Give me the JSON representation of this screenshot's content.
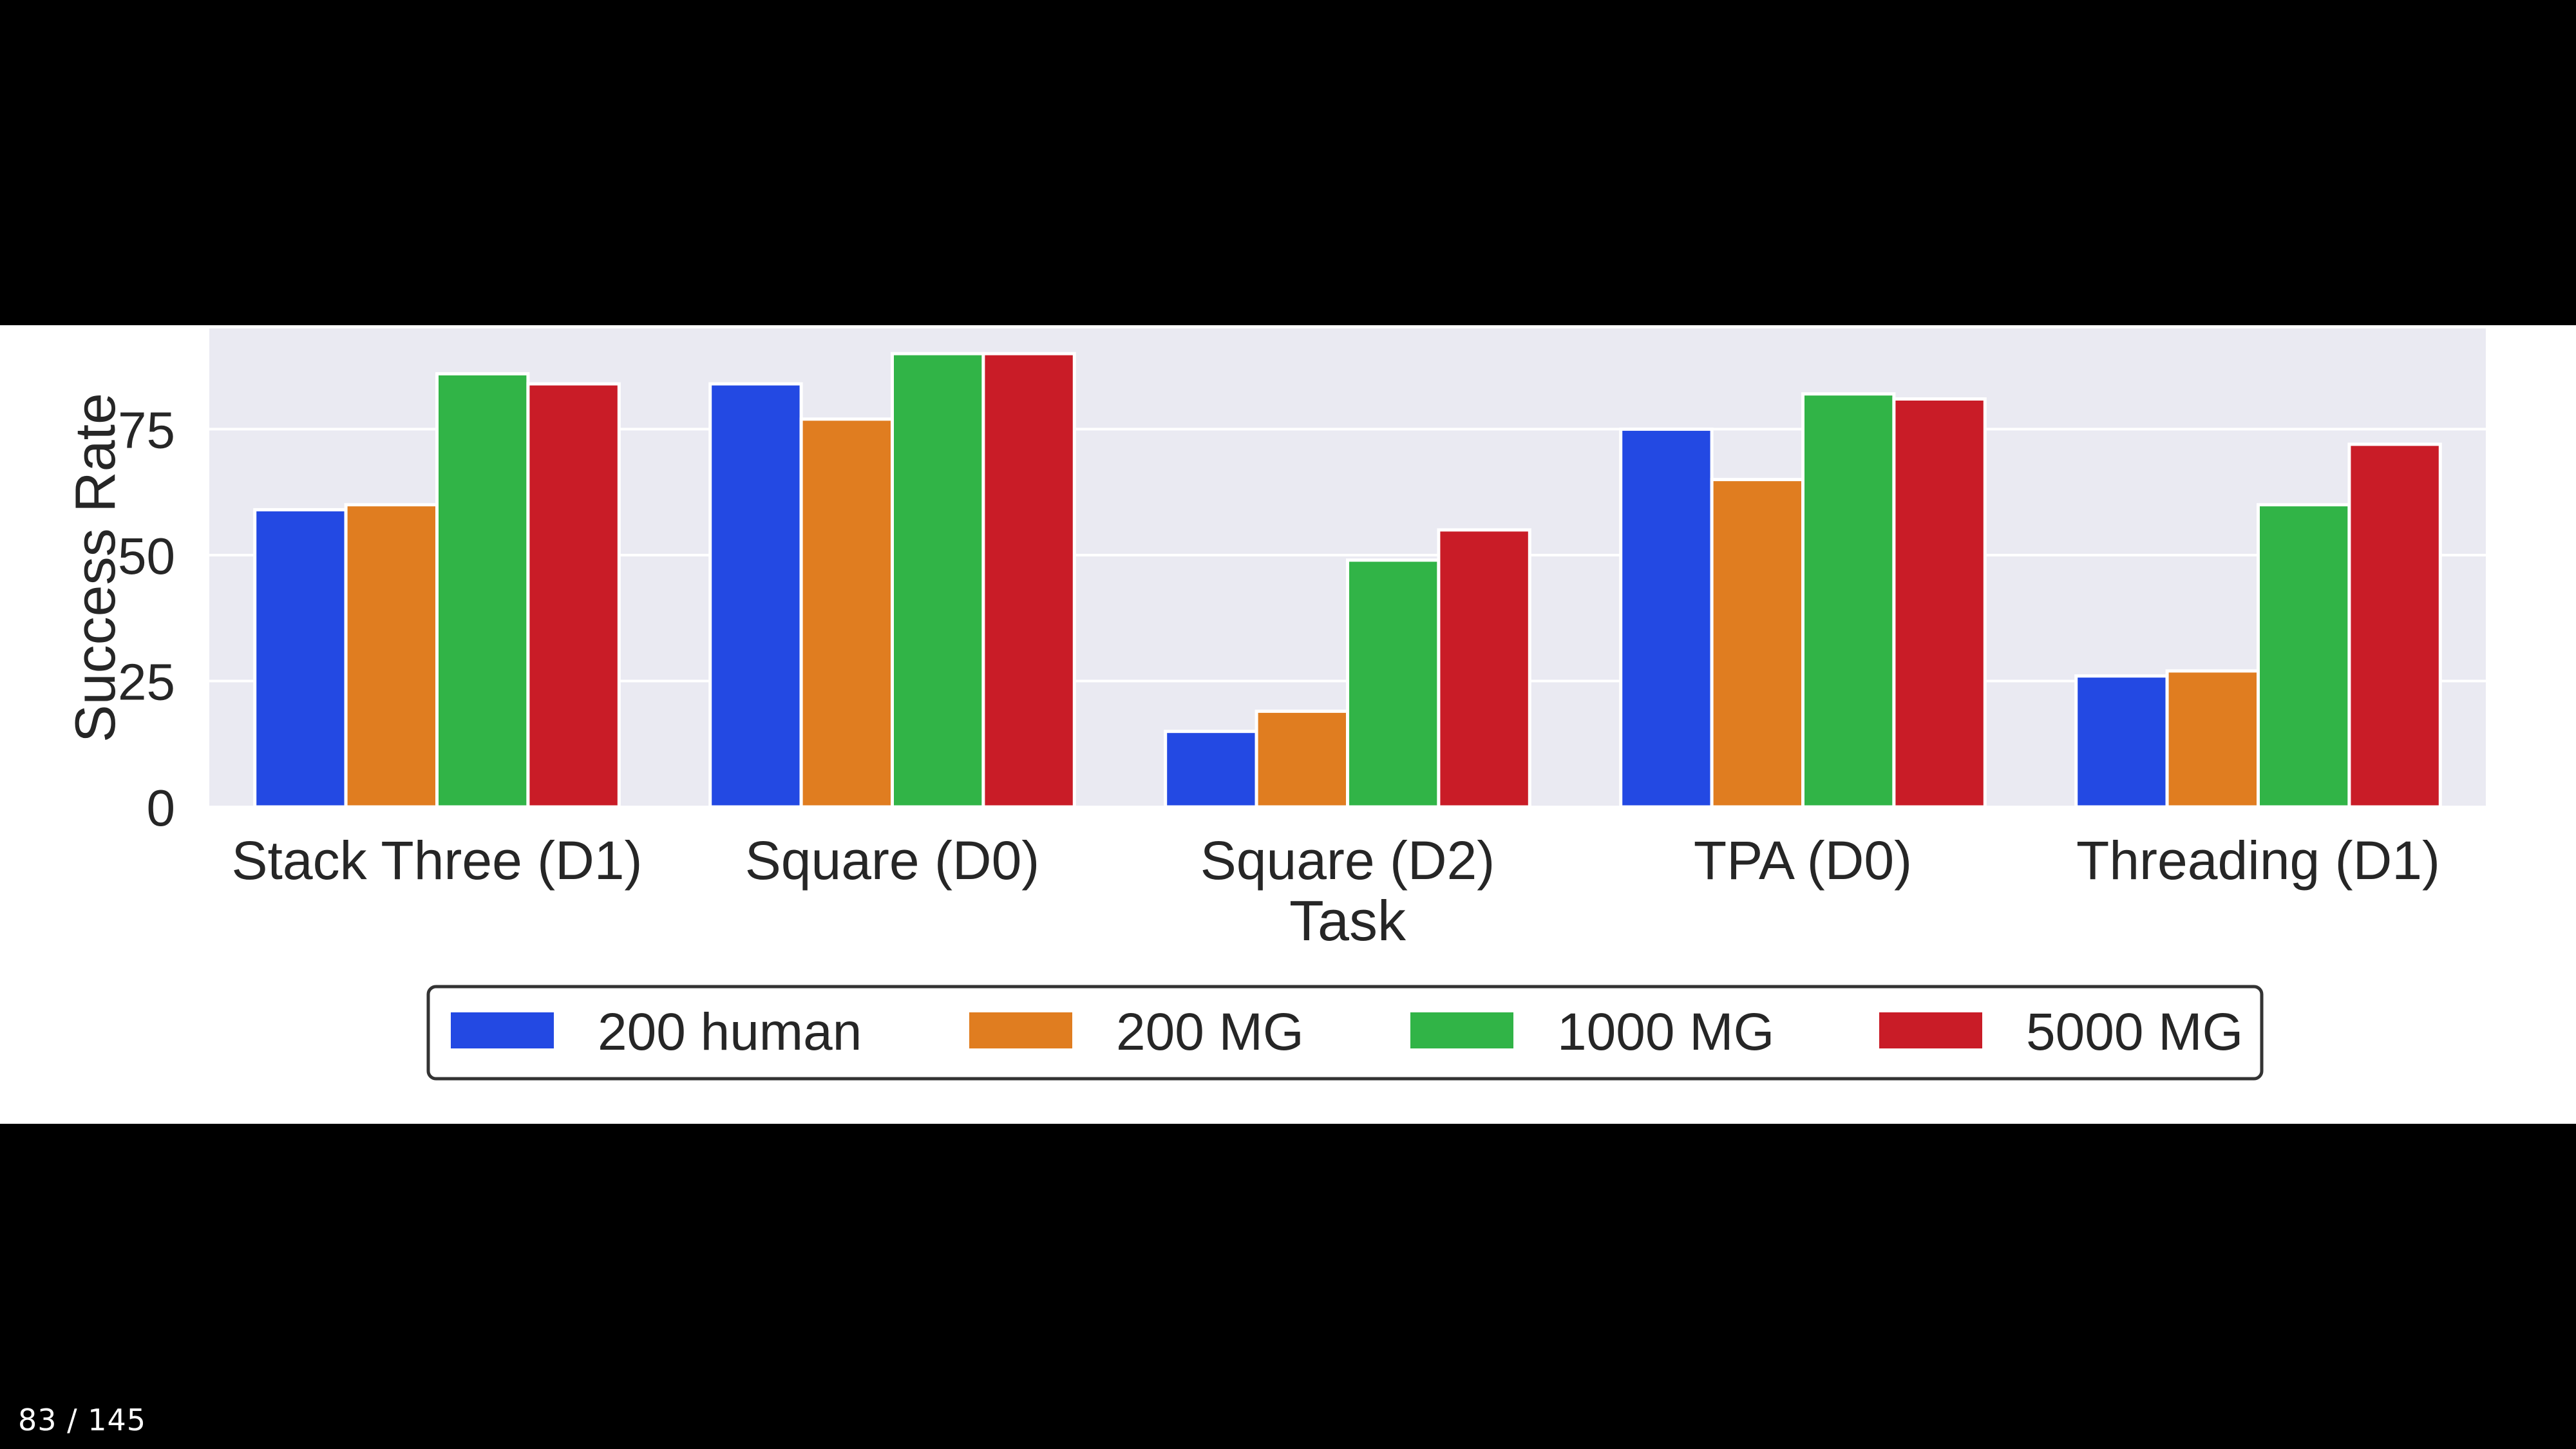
{
  "viewer": {
    "page_counter": "83 / 145"
  },
  "chart_data": {
    "type": "bar",
    "title": "",
    "xlabel": "Task",
    "ylabel": "Success Rate",
    "ylim": [
      0,
      95
    ],
    "yticks": [
      "0",
      "25",
      "50",
      "75"
    ],
    "grid": true,
    "legend_position": "bottom-center",
    "categories": [
      "Stack Three (D1)",
      "Square (D0)",
      "Square (D2)",
      "TPA (D0)",
      "Threading (D1)"
    ],
    "series": [
      {
        "name": "200 human",
        "color": "#2349e3",
        "values": [
          59,
          84,
          15,
          75,
          26
        ]
      },
      {
        "name": "200 MG",
        "color": "#e07d20",
        "values": [
          60,
          77,
          19,
          65,
          27
        ]
      },
      {
        "name": "1000 MG",
        "color": "#31b447",
        "values": [
          86,
          90,
          49,
          82,
          60
        ]
      },
      {
        "name": "5000 MG",
        "color": "#c91c27",
        "values": [
          84,
          90,
          55,
          81,
          72
        ]
      }
    ],
    "colors": {
      "plot_background": "#eaeaf2",
      "grid": "#ffffff",
      "text": "#262626"
    }
  }
}
